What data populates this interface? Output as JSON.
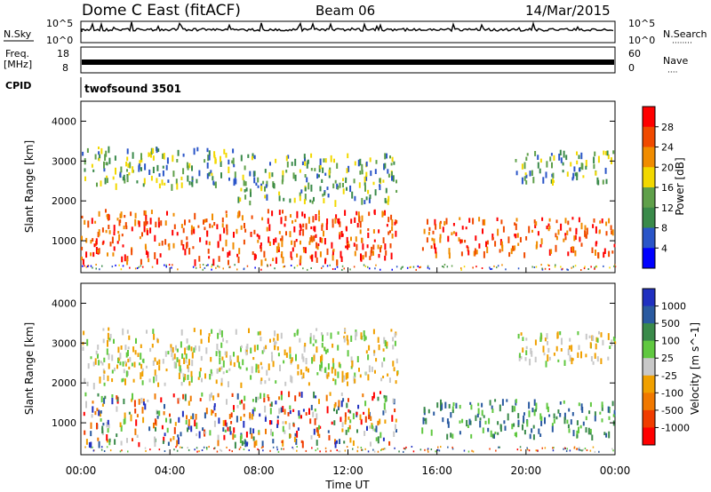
{
  "header": {
    "title": "Dome C East (fitACF)",
    "beam": "Beam 06",
    "date": "14/Mar/2015"
  },
  "panels": {
    "nsky": {
      "label": "N.Sky",
      "right_label": "N.Search",
      "left_top": "10^5",
      "left_bottom": "10^0",
      "right_top": "10^5",
      "right_bottom": "10^0"
    },
    "freq": {
      "label_line1": "Freq.",
      "label_line2": "[MHz]",
      "left_top": "18",
      "left_bottom": "8",
      "right_top": "60",
      "right_bottom": "0",
      "right_label": "Nave"
    },
    "cpid": {
      "label": "CPID",
      "value": "twofsound 3501"
    }
  },
  "colors": {
    "power_scale": [
      "#0000ff",
      "#2a55c8",
      "#3a8a4a",
      "#5fa04a",
      "#f2d800",
      "#f08c00",
      "#f04a00",
      "#ff0000"
    ],
    "velocity_scale": [
      "#ff0000",
      "#f03c00",
      "#f07800",
      "#f0a000",
      "#c8c8c8",
      "#60c840",
      "#3a8a4a",
      "#2a5aa0",
      "#2030c0"
    ]
  },
  "chart_data": [
    {
      "type": "heatmap",
      "name": "power",
      "ylabel": "Slant Range [km]",
      "xlabel": "Time UT",
      "x_ticks": [
        "00:00",
        "04:00",
        "08:00",
        "12:00",
        "16:00",
        "20:00",
        "00:00"
      ],
      "x_range_hours": [
        0,
        24
      ],
      "y_ticks": [
        "1000",
        "2000",
        "3000",
        "4000"
      ],
      "ylim": [
        200,
        4500
      ],
      "colorbar": {
        "label": "Power [dB]",
        "ticks": [
          "4",
          "8",
          "12",
          "16",
          "20",
          "24",
          "28"
        ]
      },
      "bands": [
        {
          "x": [
            0,
            14.2
          ],
          "y": [
            500,
            1800
          ],
          "level": "high"
        },
        {
          "x": [
            0,
            7
          ],
          "y": [
            2400,
            3400
          ],
          "level": "mid"
        },
        {
          "x": [
            7,
            14.2
          ],
          "y": [
            2000,
            3200
          ],
          "level": "mid"
        },
        {
          "x": [
            15.3,
            24
          ],
          "y": [
            700,
            1600
          ],
          "level": "high"
        },
        {
          "x": [
            19.5,
            24
          ],
          "y": [
            2500,
            3300
          ],
          "level": "mid"
        }
      ]
    },
    {
      "type": "heatmap",
      "name": "velocity",
      "ylabel": "Slant Range [km]",
      "xlabel": "Time UT",
      "x_ticks": [
        "00:00",
        "04:00",
        "08:00",
        "12:00",
        "16:00",
        "20:00",
        "00:00"
      ],
      "x_range_hours": [
        0,
        24
      ],
      "y_ticks": [
        "1000",
        "2000",
        "3000",
        "4000"
      ],
      "ylim": [
        200,
        4500
      ],
      "colorbar": {
        "label": "Velocity [m s^-1]",
        "ticks": [
          "1000",
          "500",
          "100",
          "25",
          "-25",
          "-100",
          "-500",
          "-1000"
        ]
      },
      "bands": [
        {
          "x": [
            0,
            14.2
          ],
          "y": [
            500,
            1800
          ],
          "level": "mixed"
        },
        {
          "x": [
            0,
            14.2
          ],
          "y": [
            2000,
            3400
          ],
          "level": "near-zero"
        },
        {
          "x": [
            15.3,
            24
          ],
          "y": [
            700,
            1600
          ],
          "level": "positive"
        },
        {
          "x": [
            19.5,
            24
          ],
          "y": [
            2500,
            3300
          ],
          "level": "near-zero"
        }
      ]
    }
  ],
  "axis": {
    "xlabel": "Time UT"
  }
}
